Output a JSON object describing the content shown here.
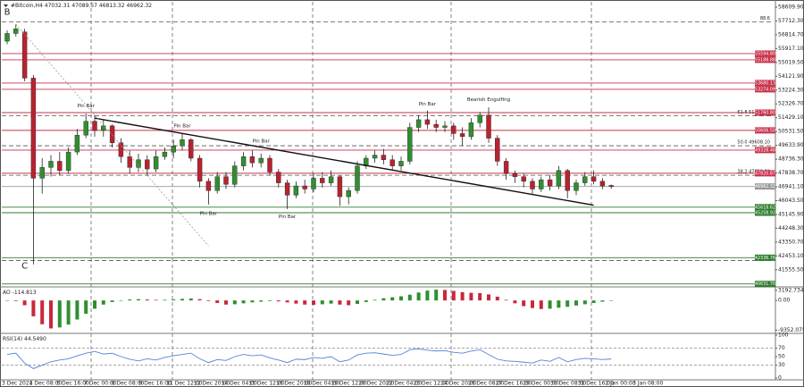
{
  "chart_data": [
    {
      "type": "candlestick",
      "symbol": "#Bitcoin,H4",
      "open": [
        56400,
        56900,
        57000,
        54000,
        47500,
        48200,
        48600,
        48000,
        49200,
        50300,
        51200,
        50600,
        50900,
        49800,
        48900,
        48200,
        48700,
        48100,
        48900,
        49200,
        49600,
        50000,
        48800,
        47300,
        46700,
        47600,
        47100,
        48300,
        48900,
        48500,
        48800,
        47900,
        47200,
        46400,
        47000,
        46800,
        47500,
        47200,
        47600,
        46300,
        46700,
        48300,
        48800,
        49000,
        48700,
        48300,
        48600,
        50800,
        51300,
        51000,
        50800,
        50900,
        50400,
        50200,
        51100,
        51600,
        50100,
        48600,
        47800,
        47600,
        47300,
        46800,
        47400,
        47000,
        48000,
        46700,
        47200,
        47600,
        47300,
        47032.31
      ],
      "high": [
        57100,
        57500,
        57200,
        54200,
        48800,
        49000,
        49200,
        49500,
        50700,
        51700,
        51600,
        51300,
        51000,
        50100,
        49300,
        49100,
        49000,
        49300,
        49500,
        50000,
        50400,
        50100,
        49000,
        47500,
        47900,
        47900,
        48600,
        49200,
        49300,
        49100,
        49000,
        48100,
        47400,
        47300,
        47400,
        47800,
        47900,
        48000,
        47700,
        46900,
        48600,
        49000,
        49300,
        49400,
        49000,
        48900,
        51100,
        51600,
        51900,
        51300,
        51200,
        51100,
        50800,
        51400,
        51800,
        52100,
        50300,
        48800,
        48000,
        47800,
        47500,
        47600,
        47700,
        48300,
        48100,
        47400,
        47900,
        48000,
        47500,
        47089.57
      ],
      "low": [
        56200,
        56700,
        53800,
        41900,
        46500,
        47600,
        47700,
        47800,
        49000,
        50100,
        50200,
        50200,
        49500,
        48500,
        47800,
        47900,
        47700,
        47900,
        48700,
        48800,
        49300,
        48600,
        46900,
        45800,
        46500,
        46800,
        46900,
        48000,
        48200,
        48200,
        47700,
        46900,
        45500,
        46200,
        46500,
        46600,
        46900,
        47000,
        45700,
        45800,
        46500,
        48100,
        48500,
        48400,
        48000,
        48000,
        48400,
        50500,
        50700,
        50500,
        50500,
        50000,
        49600,
        50000,
        50800,
        49800,
        48300,
        47400,
        47200,
        46900,
        46500,
        46600,
        46700,
        46800,
        46200,
        46400,
        47000,
        47100,
        46800,
        46813.32
      ],
      "close": [
        56900,
        57200,
        54000,
        47500,
        48200,
        48600,
        48000,
        49200,
        50300,
        51200,
        50600,
        50900,
        49800,
        48900,
        48200,
        48700,
        48100,
        48900,
        49200,
        49600,
        50000,
        48800,
        47300,
        46700,
        47600,
        47100,
        48300,
        48900,
        48500,
        48800,
        47900,
        47200,
        46400,
        47000,
        46800,
        47500,
        47200,
        47600,
        46300,
        46700,
        48300,
        48800,
        49000,
        48700,
        48300,
        48600,
        50800,
        51300,
        51000,
        50800,
        50900,
        50400,
        50200,
        51100,
        51600,
        50100,
        48600,
        47800,
        47600,
        47300,
        46800,
        47400,
        47000,
        48000,
        46700,
        47200,
        47600,
        47300,
        47000,
        46962.32
      ],
      "up_color": "#2f8f2f",
      "down_color": "#b8232f",
      "ylim": [
        40500,
        58900
      ],
      "yticks": [
        {
          "value": 58609.9,
          "label": "58609.90"
        },
        {
          "value": 57712.3,
          "label": "57712.30"
        },
        {
          "value": 56814.7,
          "label": "56814.70"
        },
        {
          "value": 55917.1,
          "label": "55917.10"
        },
        {
          "value": 55019.5,
          "label": "55019.50"
        },
        {
          "value": 54121.9,
          "label": "54121.90"
        },
        {
          "value": 53224.3,
          "label": "53224.30"
        },
        {
          "value": 52326.7,
          "label": "52326.70"
        },
        {
          "value": 51429.1,
          "label": "51429.10"
        },
        {
          "value": 50531.5,
          "label": "50531.50"
        },
        {
          "value": 49633.9,
          "label": "49633.90"
        },
        {
          "value": 48736.3,
          "label": "48736.30"
        },
        {
          "value": 47838.7,
          "label": "47838.70"
        },
        {
          "value": 46941.1,
          "label": "46941.10"
        },
        {
          "value": 46043.5,
          "label": "46043.50"
        },
        {
          "value": 45145.9,
          "label": "45145.90"
        },
        {
          "value": 44248.3,
          "label": "44248.30"
        },
        {
          "value": 43350.7,
          "label": "43350.70"
        },
        {
          "value": 42453.1,
          "label": "42453.10"
        },
        {
          "value": 41555.5,
          "label": "41555.50"
        }
      ],
      "fib": [
        {
          "value": 57650,
          "label": "88.6"
        },
        {
          "value": 51549.57,
          "label": "61.8 51549.57"
        },
        {
          "value": 49608.1,
          "label": "50.0 49608.10"
        },
        {
          "value": 47690.3,
          "label": "38.2 47690.30"
        },
        {
          "value": 42150,
          "label": "0.0"
        }
      ],
      "tags": [
        {
          "value": 55594.8,
          "label": "55594.80",
          "color": "#c8324a"
        },
        {
          "value": 55188.88,
          "label": "55188.88",
          "color": "#c8324a"
        },
        {
          "value": 53680.13,
          "label": "53680.13",
          "color": "#c8324a"
        },
        {
          "value": 53274.09,
          "label": "53274.09",
          "color": "#c8324a"
        },
        {
          "value": 51760.8,
          "label": "51760.80",
          "color": "#c8324a"
        },
        {
          "value": 50606.5,
          "label": "50606.50",
          "color": "#c8324a"
        },
        {
          "value": 49328.48,
          "label": "49328.48",
          "color": "#c8324a"
        },
        {
          "value": 47820.87,
          "label": "47820.87",
          "color": "#c8324a"
        },
        {
          "value": 46962.32,
          "label": "46962.32",
          "color": "#9a9a9a"
        },
        {
          "value": 45618.62,
          "label": "45618.62",
          "color": "#2f7d2f"
        },
        {
          "value": 45258.92,
          "label": "45258.92",
          "color": "#2f7d2f"
        },
        {
          "value": 42336.76,
          "label": "42336.76",
          "color": "#2f7d2f"
        },
        {
          "value": 40631.7,
          "label": "40631.70",
          "color": "#2f7d2f"
        }
      ],
      "lines": [
        {
          "from": {
            "index": 10,
            "price": 51400
          },
          "to": {
            "index": 67,
            "price": 45750
          },
          "color": "#111111",
          "dash": "none"
        },
        {
          "from": {
            "index": 1,
            "price": 57500
          },
          "to": {
            "index": 23,
            "price": 43100
          },
          "color": "#9a9a9a",
          "dash": "2,2"
        }
      ],
      "annotations": [
        {
          "text": "B",
          "index": 0,
          "price": 58300
        },
        {
          "text": "C",
          "index": 2,
          "price": 41800
        },
        {
          "text": "Pin Bar",
          "index": 9,
          "price": 52200
        },
        {
          "text": "Pin Bar",
          "index": 20,
          "price": 50900
        },
        {
          "text": "Pin Bar",
          "index": 29,
          "price": 49900
        },
        {
          "text": "Pin Bar",
          "index": 23,
          "price": 45200
        },
        {
          "text": "Pin Bar",
          "index": 32,
          "price": 45000
        },
        {
          "text": "Pin Bar",
          "index": 48,
          "price": 52300
        },
        {
          "text": "Bearish Engulfing",
          "index": 55,
          "price": 52600
        }
      ],
      "xlabels": [
        "3 Dec 2021",
        "4 Dec 08:00",
        "5 Dec 16:00",
        "7 Dec 00:00",
        "8 Dec 08:00",
        "9 Dec 16:00",
        "11 Dec 12:00",
        "12 Dec 20:00",
        "14 Dec 04:00",
        "15 Dec 12:00",
        "16 Dec 20:00",
        "18 Dec 04:00",
        "19 Dec 12:00",
        "20 Dec 20:00",
        "22 Dec 04:00",
        "23 Dec 12:00",
        "24 Dec 20:00",
        "26 Dec 08:00",
        "27 Dec 16:00",
        "29 Dec 00:00",
        "30 Dec 08:00",
        "31 Dec 16:00",
        "2 Jan 00:00",
        "3 Jan 08:00"
      ]
    },
    {
      "type": "histogram",
      "name": "AO",
      "values": [
        0,
        -200,
        -1500,
        -5000,
        -7500,
        -8800,
        -8500,
        -7600,
        -6000,
        -4200,
        -2600,
        -1300,
        -500,
        0,
        300,
        400,
        300,
        200,
        200,
        300,
        500,
        600,
        400,
        -200,
        -800,
        -1300,
        -1200,
        -900,
        -600,
        -400,
        -200,
        -300,
        -600,
        -1000,
        -1300,
        -1400,
        -1200,
        -1000,
        -1300,
        -1500,
        -1100,
        -500,
        200,
        700,
        1000,
        1300,
        1800,
        2500,
        3100,
        3400,
        3300,
        3000,
        2600,
        2400,
        2300,
        1900,
        1200,
        200,
        -900,
        -1800,
        -2400,
        -2700,
        -2600,
        -2300,
        -2000,
        -1600,
        -1200,
        -800,
        -400,
        -114.813
      ],
      "up_color": "#2f8f2f",
      "down_color": "#c8283a",
      "ylim": [
        -9800,
        3700
      ],
      "yticks": [
        3192.734,
        {
          "value": 0,
          "label": "0.00"
        },
        -9352.075
      ]
    },
    {
      "type": "line",
      "name": "RSI(14)",
      "values": [
        55,
        58,
        35,
        22,
        30,
        38,
        42,
        45,
        52,
        58,
        62,
        56,
        58,
        50,
        44,
        40,
        45,
        42,
        48,
        52,
        55,
        58,
        45,
        36,
        43,
        41,
        50,
        55,
        52,
        54,
        47,
        42,
        36,
        44,
        43,
        48,
        46,
        50,
        38,
        42,
        54,
        58,
        59,
        56,
        53,
        55,
        66,
        68,
        65,
        63,
        64,
        60,
        58,
        63,
        66,
        55,
        44,
        40,
        39,
        37,
        35,
        42,
        39,
        48,
        38,
        43,
        46,
        45,
        43,
        44.549
      ],
      "value_labels": [
        null,
        null,
        null,
        null,
        null,
        null,
        null,
        null,
        null,
        null,
        null,
        null,
        null,
        null,
        null,
        null,
        null,
        null,
        null,
        null,
        null,
        null,
        null,
        null,
        null,
        null,
        null,
        null,
        null,
        null,
        null,
        null,
        null,
        null,
        null,
        null,
        null,
        null,
        null,
        null,
        null,
        null,
        null,
        null,
        null,
        null,
        null,
        null,
        null,
        null,
        null,
        null,
        null,
        null,
        null,
        null,
        null,
        null,
        null,
        null,
        null,
        null,
        null,
        null,
        null,
        null,
        null,
        null,
        null,
        "44.5490"
      ],
      "color": "#4f86d6",
      "ylim": [
        0,
        100
      ],
      "yticks": [
        100,
        70,
        50,
        30,
        0
      ],
      "levels": [
        70,
        30
      ]
    }
  ]
}
